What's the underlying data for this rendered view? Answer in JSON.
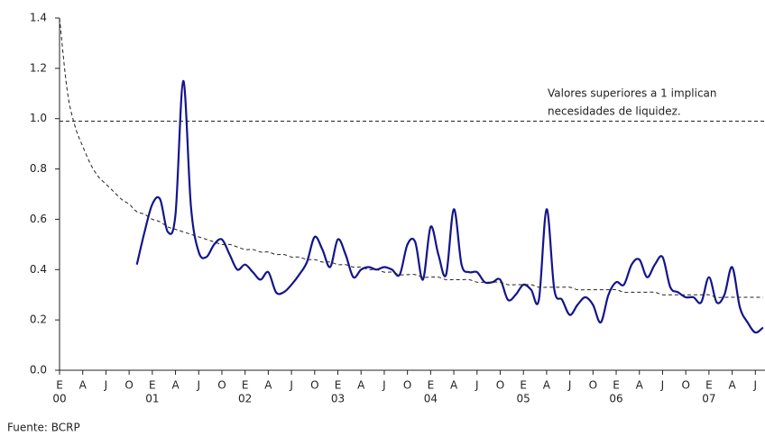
{
  "chart_data": {
    "type": "line",
    "categories": [
      "E",
      null,
      null,
      "A",
      null,
      null,
      "J",
      null,
      null,
      "O",
      null,
      null,
      "E",
      null,
      null,
      "A",
      null,
      null,
      "J",
      null,
      null,
      "O",
      null,
      null,
      "E",
      null,
      null,
      "A",
      null,
      null,
      "J",
      null,
      null,
      "O",
      null,
      null,
      "E",
      null,
      null,
      "A",
      null,
      null,
      "J",
      null,
      null,
      "O",
      null,
      null,
      "E",
      null,
      null,
      "A",
      null,
      null,
      "J",
      null,
      null,
      "O",
      null,
      null,
      "E",
      null,
      null,
      "A",
      null,
      null,
      "J",
      null,
      null,
      "O",
      null,
      null,
      "E",
      null,
      null,
      "A",
      null,
      null,
      "J",
      null,
      null,
      "O",
      null,
      null,
      "E",
      null,
      null,
      "A",
      null,
      null,
      "J",
      null
    ],
    "x_groups": [
      "00",
      "01",
      "02",
      "03",
      "04",
      "05",
      "06",
      "07"
    ],
    "series": [
      {
        "color": "#14148c",
        "values": [
          null,
          null,
          null,
          null,
          null,
          null,
          null,
          null,
          null,
          null,
          0.42,
          0.55,
          0.66,
          0.68,
          0.55,
          0.62,
          1.15,
          0.65,
          0.47,
          0.45,
          0.5,
          0.52,
          0.46,
          0.4,
          0.42,
          0.39,
          0.36,
          0.39,
          0.31,
          0.31,
          0.34,
          0.38,
          0.43,
          0.53,
          0.48,
          0.41,
          0.52,
          0.46,
          0.37,
          0.4,
          0.41,
          0.4,
          0.41,
          0.4,
          0.38,
          0.5,
          0.51,
          0.36,
          0.57,
          0.46,
          0.38,
          0.64,
          0.42,
          0.39,
          0.39,
          0.35,
          0.35,
          0.36,
          0.28,
          0.3,
          0.34,
          0.32,
          0.28,
          0.64,
          0.32,
          0.28,
          0.22,
          0.26,
          0.29,
          0.26,
          0.19,
          0.3,
          0.35,
          0.34,
          0.42,
          0.44,
          0.37,
          0.42,
          0.45,
          0.33,
          0.31,
          0.29,
          0.29,
          0.27,
          0.37,
          0.27,
          0.3,
          0.41,
          0.25,
          0.19,
          0.15,
          0.17
        ]
      },
      {
        "color": "#222222",
        "dashed": true,
        "values": [
          1.4,
          1.11,
          0.97,
          0.89,
          0.82,
          0.77,
          0.74,
          0.71,
          0.68,
          0.66,
          0.63,
          0.62,
          0.6,
          0.59,
          0.57,
          0.56,
          0.55,
          0.54,
          0.53,
          0.52,
          0.51,
          0.5,
          0.5,
          0.49,
          0.48,
          0.48,
          0.47,
          0.47,
          0.46,
          0.46,
          0.45,
          0.45,
          0.44,
          0.44,
          0.43,
          0.43,
          0.42,
          0.42,
          0.41,
          0.41,
          0.4,
          0.4,
          0.39,
          0.39,
          0.38,
          0.38,
          0.38,
          0.37,
          0.37,
          0.37,
          0.36,
          0.36,
          0.36,
          0.36,
          0.35,
          0.35,
          0.35,
          0.35,
          0.34,
          0.34,
          0.34,
          0.34,
          0.33,
          0.33,
          0.33,
          0.33,
          0.33,
          0.32,
          0.32,
          0.32,
          0.32,
          0.32,
          0.32,
          0.31,
          0.31,
          0.31,
          0.31,
          0.31,
          0.3,
          0.3,
          0.3,
          0.3,
          0.3,
          0.3,
          0.3,
          0.29,
          0.29,
          0.29,
          0.29,
          0.29,
          0.29,
          0.29
        ]
      }
    ],
    "reference_line": 0.99,
    "annotation": [
      "Valores superiores a 1 implican",
      "necesidades de liquidez."
    ],
    "source": "Fuente: BCRP",
    "ylim": [
      0,
      1.4
    ],
    "yticks": [
      {
        "value": 0,
        "label": "0.0"
      },
      0.2,
      0.4,
      0.6,
      0.8,
      {
        "value": 1,
        "label": "1.0"
      },
      1.2,
      1.4
    ]
  }
}
